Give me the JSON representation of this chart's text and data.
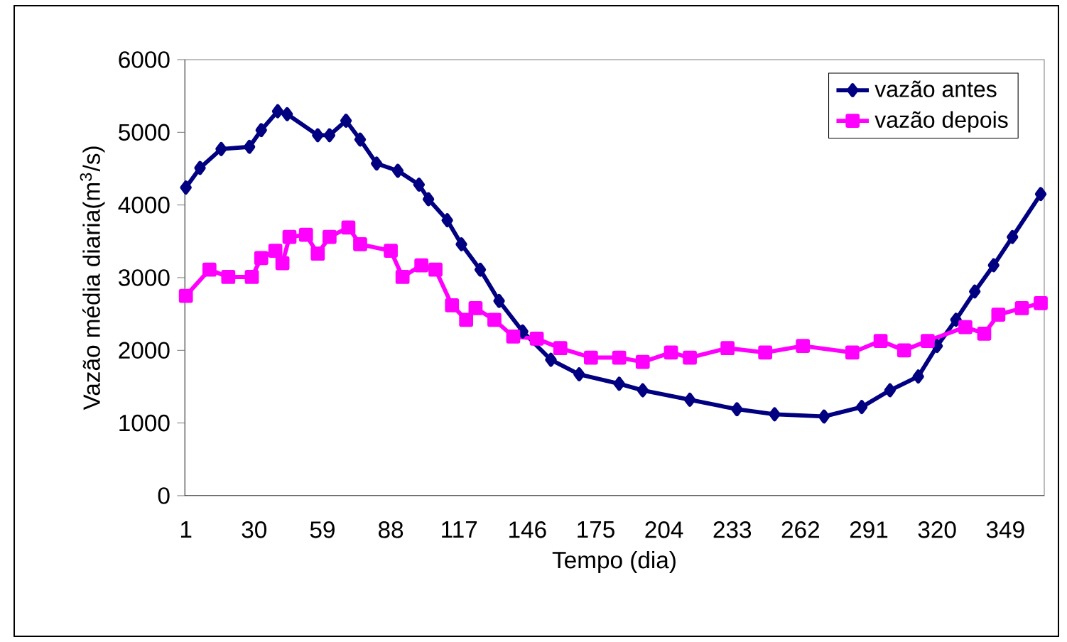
{
  "chart_data": {
    "type": "line",
    "xlabel": "Tempo (dia)",
    "ylabel": "Vazão média diaria(m$^{3}$/s)",
    "xlim": [
      0.5,
      365.5
    ],
    "xticks": [
      1,
      30,
      59,
      88,
      117,
      146,
      175,
      204,
      233,
      262,
      291,
      320,
      349
    ],
    "ylim": [
      0,
      6000
    ],
    "yticks": [
      0,
      1000,
      2000,
      3000,
      4000,
      5000,
      6000
    ],
    "legend": "top right",
    "grid": false,
    "series": [
      {
        "name": "vazão antes",
        "color": "#000080",
        "marker": "diamond",
        "x": [
          1,
          7,
          16,
          28,
          33,
          40,
          44,
          57,
          62,
          69,
          75,
          82,
          91,
          100,
          104,
          112,
          118,
          126,
          134,
          144,
          156,
          168,
          185,
          195,
          215,
          235,
          251,
          272,
          288,
          300,
          312,
          320,
          328,
          336,
          344,
          352,
          364
        ],
        "values": [
          4240,
          4510,
          4770,
          4800,
          5030,
          5290,
          5250,
          4960,
          4960,
          5160,
          4900,
          4570,
          4470,
          4280,
          4080,
          3790,
          3460,
          3110,
          2680,
          2260,
          1870,
          1670,
          1540,
          1450,
          1320,
          1190,
          1120,
          1090,
          1220,
          1450,
          1640,
          2060,
          2420,
          2810,
          3170,
          3560,
          4150
        ]
      },
      {
        "name": "vazão depois",
        "color": "#ff00ff",
        "marker": "square",
        "x": [
          1,
          11,
          19,
          29,
          33,
          39,
          42,
          45,
          52,
          57,
          62,
          70,
          75,
          88,
          93,
          101,
          107,
          114,
          120,
          124,
          132,
          140,
          150,
          160,
          173,
          185,
          195,
          207,
          215,
          231,
          247,
          263,
          284,
          296,
          306,
          316,
          332,
          340,
          346,
          356,
          364
        ],
        "values": [
          2750,
          3110,
          3010,
          3010,
          3270,
          3370,
          3200,
          3560,
          3590,
          3330,
          3560,
          3690,
          3460,
          3370,
          3010,
          3170,
          3110,
          2620,
          2420,
          2580,
          2420,
          2190,
          2160,
          2030,
          1900,
          1900,
          1840,
          1970,
          1900,
          2030,
          1970,
          2060,
          1970,
          2130,
          2000,
          2130,
          2320,
          2230,
          2490,
          2580,
          2650
        ]
      }
    ]
  }
}
